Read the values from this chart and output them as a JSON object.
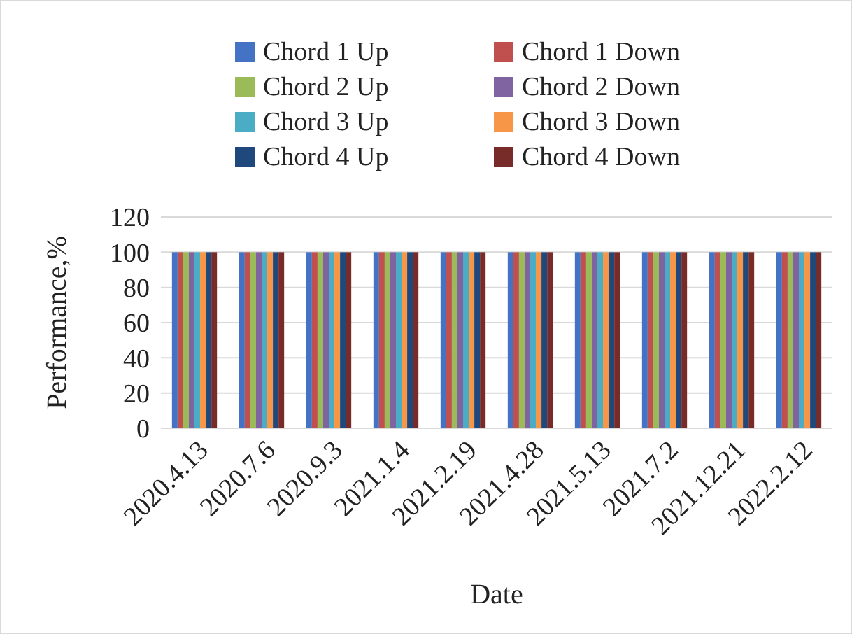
{
  "chart_data": {
    "type": "bar",
    "xlabel": "Date",
    "ylabel": "Performance,%",
    "categories": [
      "2020.4.13",
      "2020.7.6",
      "2020.9.3",
      "2021.1.4",
      "2021.2.19",
      "2021.4.28",
      "2021.5.13",
      "2021.7.2",
      "2021.12.21",
      "2022.2.12"
    ],
    "series": [
      {
        "name": "Chord 1 Up",
        "color": "#4472c4",
        "values": [
          100,
          100,
          100,
          100,
          100,
          100,
          100,
          100,
          100,
          100
        ]
      },
      {
        "name": "Chord 1 Down",
        "color": "#c0504d",
        "values": [
          100,
          100,
          100,
          100,
          100,
          100,
          100,
          100,
          100,
          100
        ]
      },
      {
        "name": "Chord 2 Up",
        "color": "#9bbb59",
        "values": [
          100,
          100,
          100,
          100,
          100,
          100,
          100,
          100,
          100,
          100
        ]
      },
      {
        "name": "Chord 2 Down",
        "color": "#8064a2",
        "values": [
          100,
          100,
          100,
          100,
          100,
          100,
          100,
          100,
          100,
          100
        ]
      },
      {
        "name": "Chord 3 Up",
        "color": "#4bacc6",
        "values": [
          100,
          100,
          100,
          100,
          100,
          100,
          100,
          100,
          100,
          100
        ]
      },
      {
        "name": "Chord 3 Down",
        "color": "#f79646",
        "values": [
          100,
          100,
          100,
          100,
          100,
          100,
          100,
          100,
          100,
          100
        ]
      },
      {
        "name": "Chord 4 Up",
        "color": "#1f497d",
        "values": [
          100,
          100,
          100,
          100,
          100,
          100,
          100,
          100,
          100,
          100
        ]
      },
      {
        "name": "Chord 4 Down",
        "color": "#772c2a",
        "values": [
          100,
          100,
          100,
          100,
          100,
          100,
          100,
          100,
          100,
          100
        ]
      }
    ],
    "ylim": [
      0,
      120
    ],
    "yticks": [
      0,
      20,
      40,
      60,
      80,
      100,
      120
    ],
    "grid": "y",
    "legend": "top"
  }
}
